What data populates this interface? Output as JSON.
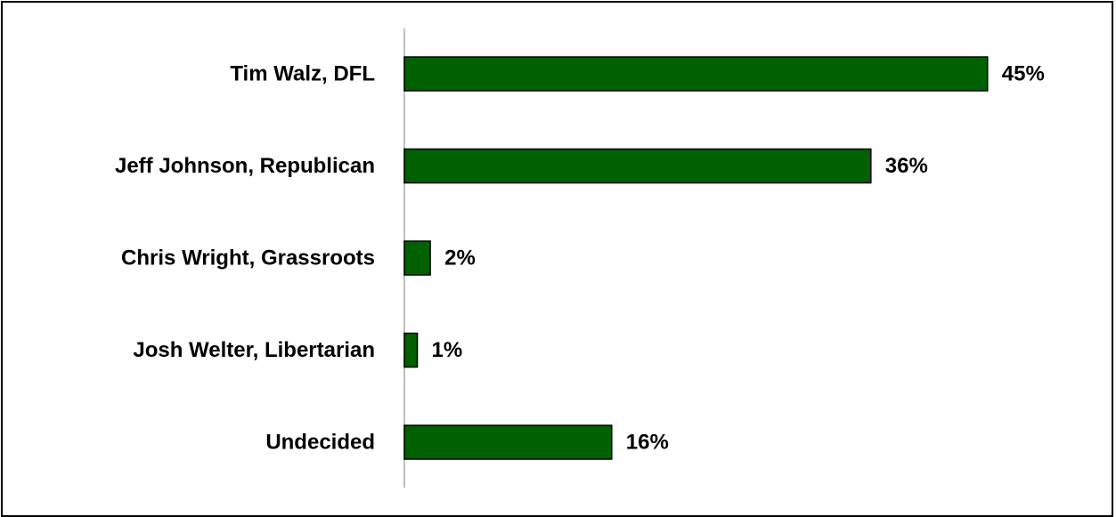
{
  "chart_data": {
    "type": "bar",
    "orientation": "horizontal",
    "categories": [
      "Tim Walz, DFL",
      "Jeff Johnson, Republican",
      "Chris Wright, Grassroots",
      "Josh Welter, Libertarian",
      "Undecided"
    ],
    "values": [
      45,
      36,
      2,
      1,
      16
    ],
    "value_labels": [
      "45%",
      "36%",
      "2%",
      "1%",
      "16%"
    ],
    "value_unit": "%",
    "title": "",
    "xlabel": "",
    "ylabel": "",
    "xlim": [
      0,
      50
    ],
    "grid": false,
    "legend": "none",
    "bar_color": "#006100",
    "bar_outline_color": "#000000",
    "axis_color": "#bfbfbf"
  }
}
